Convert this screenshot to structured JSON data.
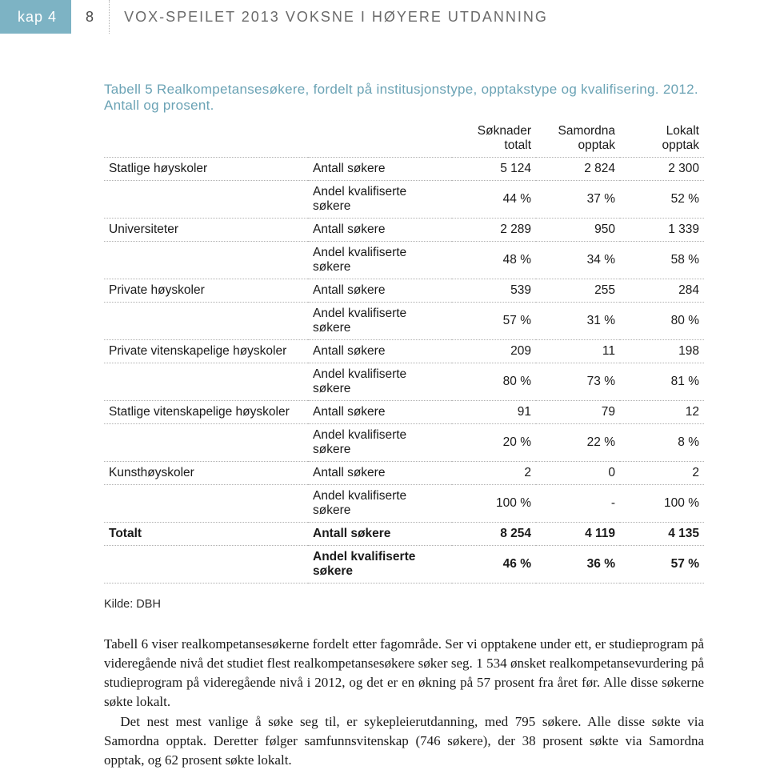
{
  "header": {
    "chapter": "kap 4",
    "pageNumber": "8",
    "title": "VOX-SPEILET 2013 VOKSNE I HØYERE UTDANNING"
  },
  "table": {
    "title": "Tabell 5 Realkompetansesøkere, fordelt på institusjonstype, opptakstype og kvalifisering. 2012. Antall og prosent.",
    "columns": [
      "Søknader totalt",
      "Samordna opptak",
      "Lokalt opptak"
    ],
    "groups": [
      {
        "inst": "Statlige høyskoler",
        "rows": [
          {
            "metric": "Antall søkere",
            "vals": [
              "5 124",
              "2 824",
              "2 300"
            ],
            "bold": false
          },
          {
            "metric": "Andel kvalifiserte søkere",
            "vals": [
              "44 %",
              "37 %",
              "52 %"
            ],
            "bold": false
          }
        ]
      },
      {
        "inst": "Universiteter",
        "rows": [
          {
            "metric": "Antall søkere",
            "vals": [
              "2 289",
              "950",
              "1 339"
            ],
            "bold": false
          },
          {
            "metric": "Andel kvalifiserte søkere",
            "vals": [
              "48 %",
              "34 %",
              "58 %"
            ],
            "bold": false
          }
        ]
      },
      {
        "inst": "Private høyskoler",
        "rows": [
          {
            "metric": "Antall søkere",
            "vals": [
              "539",
              "255",
              "284"
            ],
            "bold": false
          },
          {
            "metric": "Andel kvalifiserte søkere",
            "vals": [
              "57 %",
              "31 %",
              "80 %"
            ],
            "bold": false
          }
        ]
      },
      {
        "inst": "Private vitenskapelige høyskoler",
        "rows": [
          {
            "metric": "Antall søkere",
            "vals": [
              "209",
              "11",
              "198"
            ],
            "bold": false
          },
          {
            "metric": "Andel kvalifiserte søkere",
            "vals": [
              "80 %",
              "73 %",
              "81 %"
            ],
            "bold": false
          }
        ]
      },
      {
        "inst": "Statlige vitenskapelige høyskoler",
        "rows": [
          {
            "metric": "Antall søkere",
            "vals": [
              "91",
              "79",
              "12"
            ],
            "bold": false
          },
          {
            "metric": "Andel kvalifiserte søkere",
            "vals": [
              "20 %",
              "22 %",
              "8 %"
            ],
            "bold": false
          }
        ]
      },
      {
        "inst": "Kunsthøyskoler",
        "rows": [
          {
            "metric": "Antall søkere",
            "vals": [
              "2",
              "0",
              "2"
            ],
            "bold": false
          },
          {
            "metric": "Andel kvalifiserte søkere",
            "vals": [
              "100 %",
              "-",
              "100 %"
            ],
            "bold": false
          }
        ]
      },
      {
        "inst": "Totalt",
        "rows": [
          {
            "metric": "Antall søkere",
            "vals": [
              "8 254",
              "4 119",
              "4 135"
            ],
            "bold": true
          },
          {
            "metric": "Andel kvalifiserte søkere",
            "vals": [
              "46 %",
              "36 %",
              "57 %"
            ],
            "bold": true
          }
        ]
      }
    ],
    "source": "Kilde: DBH"
  },
  "paragraphs": [
    "Tabell 6 viser realkompetansesøkerne fordelt etter fagområde. Ser vi opptakene under ett, er studieprogram på videregående nivå det studiet flest realkompetansesøkere søker seg. 1 534 ønsket realkompetansevurdering på studieprogram på videregående nivå i 2012, og det er en økning på 57 prosent fra året før. Alle disse søkerne søkte lokalt.",
    "Det nest mest vanlige å søke seg til, er sykepleierutdanning, med 795 søkere. Alle disse søkte via Samordna opptak. Deretter følger samfunnsvitenskap (746 søkere), der 38 prosent søkte via Samordna opptak, og 62 prosent søkte lokalt."
  ],
  "colors": {
    "accent": "#7db3c4",
    "titleAccent": "#6ba3b5",
    "dottedBorder": "#b0b0b0",
    "headerText": "#6a6a6a"
  }
}
